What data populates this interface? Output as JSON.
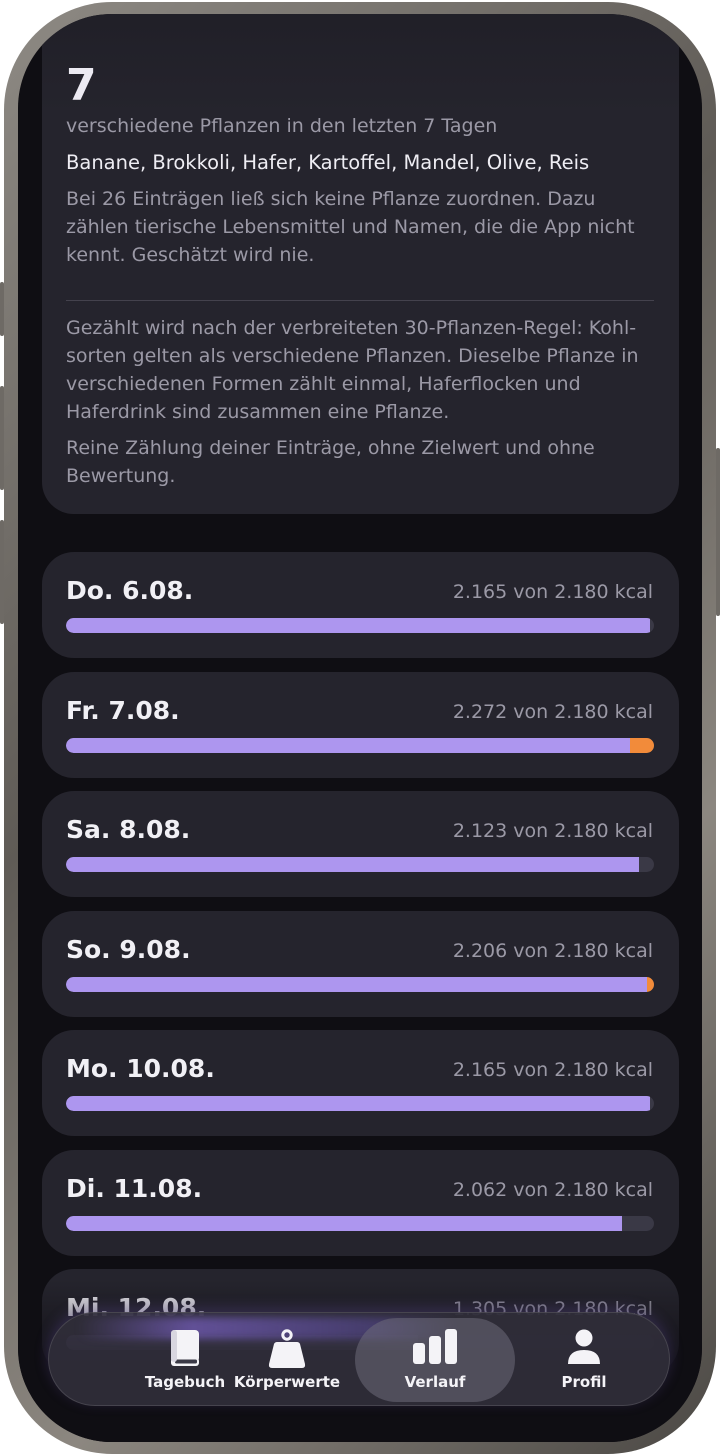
{
  "summary": {
    "count": "7",
    "subtitle": "verschiedene Pflanzen in den letzten 7 Tagen",
    "plants": "Banane, Brokkoli, Hafer, Kartoffel, Mandel, Olive, Reis",
    "unassigned_note": "Bei 26 Einträgen ließ sich keine Pflanze zuordnen. Dazu zählen tierische Lebensmittel und Namen, die die App nicht kennt. Geschätzt wird nie.",
    "rule_note": "Gezählt wird nach der verbreiteten 30-Pflanzen-Regel: Kohl­sorten gelten als verschiedene Pflanzen. Dieselbe Pflanze in verschiedenen Formen zählt einmal, Haferflocken und Haferdrink sind zusammen eine Pflanze.",
    "disclaimer": "Reine Zählung deiner Einträge, ohne Zielwert und ohne Bewertung."
  },
  "days": [
    {
      "label": "Do. 6.08.",
      "kcal_text": "2.165 von 2.180 kcal",
      "kcal": 2165,
      "goal": 2180
    },
    {
      "label": "Fr. 7.08.",
      "kcal_text": "2.272 von 2.180 kcal",
      "kcal": 2272,
      "goal": 2180
    },
    {
      "label": "Sa. 8.08.",
      "kcal_text": "2.123 von 2.180 kcal",
      "kcal": 2123,
      "goal": 2180
    },
    {
      "label": "So. 9.08.",
      "kcal_text": "2.206 von 2.180 kcal",
      "kcal": 2206,
      "goal": 2180
    },
    {
      "label": "Mo. 10.08.",
      "kcal_text": "2.165 von 2.180 kcal",
      "kcal": 2165,
      "goal": 2180
    },
    {
      "label": "Di. 11.08.",
      "kcal_text": "2.062 von 2.180 kcal",
      "kcal": 2062,
      "goal": 2180
    },
    {
      "label": "Mi. 12.08.",
      "kcal_text": "1.305 von 2.180 kcal",
      "kcal": 1305,
      "goal": 2180
    }
  ],
  "colors": {
    "bar_fill": "#ad96ef",
    "bar_over": "#f28b3a",
    "bar_track": "#3a3946"
  },
  "tabbar": {
    "items": [
      {
        "label": "Tagebuch",
        "icon": "book-icon"
      },
      {
        "label": "Körperwerte",
        "icon": "weight-icon"
      },
      {
        "label": "Verlauf",
        "icon": "chart-icon",
        "active": true
      },
      {
        "label": "Profil",
        "icon": "person-icon"
      }
    ]
  }
}
